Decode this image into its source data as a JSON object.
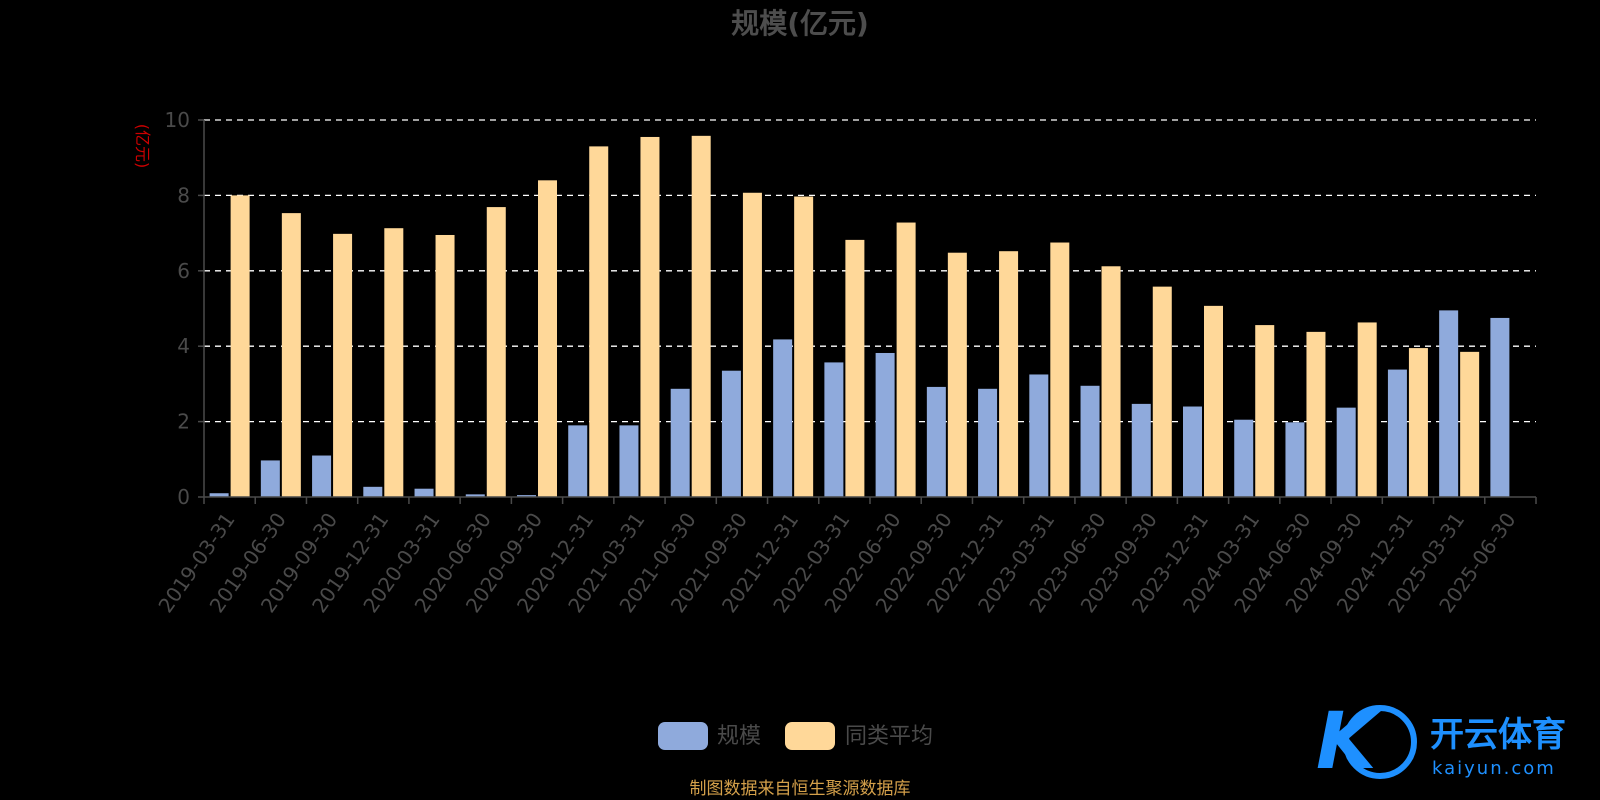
{
  "chart_data": {
    "type": "bar",
    "title": "规模(亿元)",
    "unit_label": "(亿元)",
    "categories": [
      "2019-03-31",
      "2019-06-30",
      "2019-09-30",
      "2019-12-31",
      "2020-03-31",
      "2020-06-30",
      "2020-09-30",
      "2020-12-31",
      "2021-03-31",
      "2021-06-30",
      "2021-09-30",
      "2021-12-31",
      "2022-03-31",
      "2022-06-30",
      "2022-09-30",
      "2022-12-31",
      "2023-03-31",
      "2023-06-30",
      "2023-09-30",
      "2023-12-31",
      "2024-03-31",
      "2024-06-30",
      "2024-09-30",
      "2024-12-31",
      "2025-03-31",
      "2025-06-30"
    ],
    "series": [
      {
        "name": "规模",
        "color": "#8faadc",
        "values": [
          0.1,
          0.97,
          1.1,
          0.27,
          0.22,
          0.07,
          0.05,
          1.9,
          1.9,
          2.87,
          3.35,
          4.18,
          3.57,
          3.82,
          2.92,
          2.87,
          3.25,
          2.95,
          2.47,
          2.4,
          2.05,
          1.98,
          2.37,
          3.38,
          4.95,
          4.75
        ]
      },
      {
        "name": "同类平均",
        "color": "#ffd899",
        "values": [
          8.0,
          7.53,
          6.98,
          7.13,
          6.95,
          7.69,
          8.4,
          9.3,
          9.55,
          9.58,
          8.07,
          7.97,
          6.82,
          7.28,
          6.48,
          6.52,
          6.75,
          6.12,
          5.58,
          5.07,
          4.56,
          4.38,
          4.63,
          3.95,
          3.85,
          null
        ]
      }
    ],
    "ylim": [
      0,
      10
    ],
    "yticks": [
      0,
      2,
      4,
      6,
      8,
      10
    ],
    "grid": "horizontal dashed",
    "legend_position": "bottom-center",
    "source_note": "制图数据来自恒生聚源数据库"
  },
  "watermark": {
    "brand": "开云体育",
    "domain": "kaiyun.com",
    "mark": "K"
  },
  "colors": {
    "background": "#000000",
    "axis": "#4a4a4a",
    "grid": "#ffffff"
  }
}
